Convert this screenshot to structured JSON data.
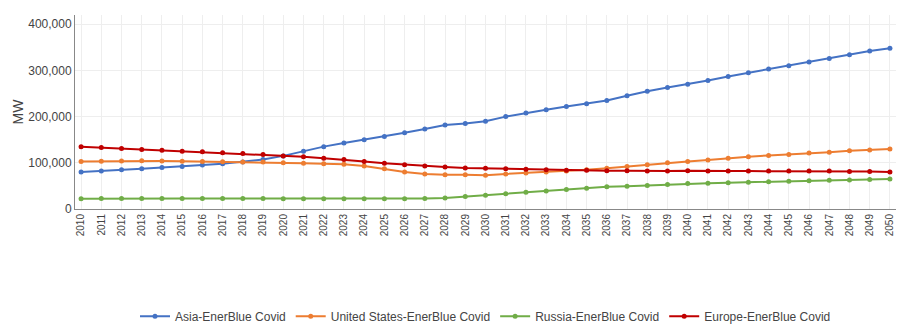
{
  "chart_data": {
    "type": "line",
    "x": [
      2010,
      2011,
      2012,
      2013,
      2014,
      2015,
      2016,
      2017,
      2018,
      2019,
      2020,
      2021,
      2022,
      2023,
      2024,
      2025,
      2026,
      2027,
      2028,
      2029,
      2030,
      2031,
      2032,
      2033,
      2034,
      2035,
      2036,
      2037,
      2038,
      2039,
      2040,
      2041,
      2042,
      2043,
      2044,
      2045,
      2046,
      2047,
      2048,
      2049,
      2050
    ],
    "series": [
      {
        "name": "Asia-EnerBlue Covid",
        "color": "#4472C4",
        "values": [
          80000,
          82000,
          85000,
          87000,
          90000,
          92000,
          95000,
          98000,
          102000,
          107000,
          115000,
          125000,
          135000,
          143000,
          150000,
          157000,
          165000,
          173000,
          182000,
          185000,
          190000,
          200000,
          208000,
          215000,
          222000,
          228000,
          235000,
          245000,
          255000,
          263000,
          270000,
          278000,
          287000,
          295000,
          303000,
          310000,
          318000,
          326000,
          334000,
          342000,
          348000
        ]
      },
      {
        "name": "United States-EnerBlue Covid",
        "color": "#ED7D31",
        "values": [
          103000,
          103500,
          104000,
          104500,
          104000,
          103500,
          103000,
          102500,
          102000,
          101500,
          100000,
          99000,
          98000,
          97000,
          93000,
          87000,
          80000,
          76000,
          74000,
          74000,
          73000,
          76000,
          78000,
          80000,
          82000,
          85000,
          88000,
          92000,
          96000,
          100000,
          103000,
          106000,
          110000,
          113000,
          116000,
          118000,
          121000,
          123000,
          126000,
          128000,
          130000
        ]
      },
      {
        "name": "Russia-EnerBlue Covid",
        "color": "#70AD47",
        "values": [
          22000,
          22500,
          22500,
          22500,
          22500,
          23000,
          23000,
          23000,
          23000,
          23000,
          22000,
          22000,
          22000,
          22000,
          22000,
          22000,
          22000,
          23000,
          24000,
          27000,
          30000,
          33000,
          36000,
          39000,
          42000,
          45000,
          48000,
          49000,
          51000,
          53000,
          55000,
          56000,
          57000,
          58000,
          59000,
          60000,
          61000,
          62000,
          63000,
          64000,
          65000
        ]
      },
      {
        "name": "Europe-EnerBlue Covid",
        "color": "#C00000",
        "values": [
          135000,
          133000,
          131000,
          129000,
          127000,
          125000,
          124000,
          122000,
          120000,
          118000,
          115000,
          113000,
          110000,
          107000,
          103000,
          99000,
          96000,
          93000,
          91000,
          89000,
          88000,
          87000,
          86000,
          85000,
          84000,
          84000,
          83000,
          83000,
          82000,
          82000,
          83000,
          82000,
          82000,
          82000,
          82000,
          82000,
          82000,
          82000,
          81000,
          81000,
          80000
        ]
      }
    ],
    "ylabel": "MW",
    "xlim": [
      2009.7,
      2050.3
    ],
    "xticks": [
      2010,
      2011,
      2012,
      2013,
      2014,
      2015,
      2016,
      2017,
      2018,
      2019,
      2020,
      2021,
      2022,
      2023,
      2024,
      2025,
      2026,
      2027,
      2028,
      2029,
      2030,
      2031,
      2032,
      2033,
      2034,
      2035,
      2036,
      2037,
      2038,
      2039,
      2040,
      2041,
      2042,
      2043,
      2044,
      2045,
      2046,
      2047,
      2048,
      2049,
      2050
    ],
    "ylim": [
      0,
      420000
    ],
    "yticks": [
      0,
      {
        "value": 100000,
        "label": "100,000"
      },
      {
        "value": 200000,
        "label": "200,000"
      },
      {
        "value": 300000,
        "label": "300,000"
      },
      {
        "value": 400000,
        "label": "400,000"
      }
    ],
    "grid": true,
    "legend": "bottom",
    "marker": "circle"
  }
}
